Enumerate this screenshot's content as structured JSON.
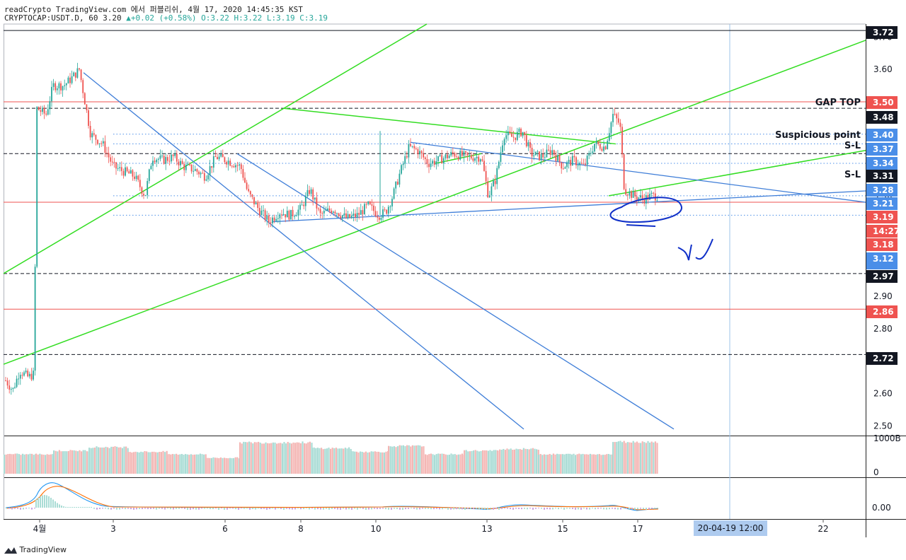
{
  "header": {
    "line1": "readCrypto TradingView.com 에서 퍼블리쉬, 4월 17, 2020 14:45:35 KST",
    "symbol": "CRYPTOCAP:USDT.D, 60",
    "last": "3.20",
    "change": "+0.02 (+0.58%)",
    "ohlc": "O:3.22 H:3.22 L:3.19 C:3.19"
  },
  "branding": "TradingView",
  "colors": {
    "green_line": "#33dd22",
    "blue_line": "#3f7ed8",
    "red_line": "#e53935",
    "up_candle": "#26a69a",
    "down_candle": "#ef5350"
  },
  "chart_data": {
    "type": "candlestick",
    "ylim": [
      2.47,
      3.74
    ],
    "y_ticks": [
      "2.50",
      "2.60",
      "2.70",
      "2.80",
      "2.90",
      "3.00",
      "3.10",
      "3.20",
      "3.30",
      "3.40",
      "3.50",
      "3.60",
      "3.70"
    ],
    "x_ticks": [
      "4월",
      "3",
      "6",
      "8",
      "10",
      "13",
      "15",
      "17",
      "20",
      "22"
    ],
    "crosshair_time_label": "20-04-19   12:00",
    "price_badges": [
      {
        "text": "3.72",
        "bg": "#131722",
        "fg": "#ffffff"
      },
      {
        "text": "3.50",
        "bg": "#ef5350",
        "fg": "#ffffff"
      },
      {
        "text": "3.48",
        "bg": "#131722",
        "fg": "#ffffff"
      },
      {
        "text": "3.40",
        "bg": "#4a8ee8",
        "fg": "#ffffff"
      },
      {
        "text": "3.37",
        "bg": "#4a8ee8",
        "fg": "#ffffff"
      },
      {
        "text": "3.34",
        "bg": "#4a8ee8",
        "fg": "#ffffff"
      },
      {
        "text": "3.31",
        "bg": "#131722",
        "fg": "#ffffff"
      },
      {
        "text": "3.28",
        "bg": "#4a8ee8",
        "fg": "#ffffff"
      },
      {
        "text": "3.21",
        "bg": "#4a8ee8",
        "fg": "#ffffff"
      },
      {
        "text": "3.19",
        "bg": "#ef5350",
        "fg": "#ffffff"
      },
      {
        "text": "14:27",
        "bg": "#ef5350",
        "fg": "#ffffff"
      },
      {
        "text": "3.18",
        "bg": "#ef5350",
        "fg": "#ffffff"
      },
      {
        "text": "3.12",
        "bg": "#4a8ee8",
        "fg": "#ffffff"
      },
      {
        "text": "2.97",
        "bg": "#131722",
        "fg": "#ffffff"
      },
      {
        "text": "2.86",
        "bg": "#ef5350",
        "fg": "#ffffff"
      },
      {
        "text": "2.72",
        "bg": "#131722",
        "fg": "#ffffff"
      }
    ],
    "annotations": [
      {
        "text": "GAP TOP",
        "price": 3.5
      },
      {
        "text": "Suspicious point",
        "price": 3.4
      },
      {
        "text": "S-L",
        "price": 3.37
      },
      {
        "text": "S-L",
        "price": 3.31
      }
    ],
    "horizontal_lines": [
      {
        "price": 3.72,
        "style": "solid",
        "color": "#131722"
      },
      {
        "price": 3.5,
        "style": "solid",
        "color": "#ef5350"
      },
      {
        "price": 3.48,
        "style": "dashed",
        "color": "#131722"
      },
      {
        "price": 3.4,
        "style": "dotted",
        "color": "#4a8ee8"
      },
      {
        "price": 3.37,
        "style": "dotted",
        "color": "#4a8ee8"
      },
      {
        "price": 3.34,
        "style": "dashed",
        "color": "#131722"
      },
      {
        "price": 3.31,
        "style": "dotted",
        "color": "#4a8ee8"
      },
      {
        "price": 3.21,
        "style": "dotted",
        "color": "#4a8ee8"
      },
      {
        "price": 3.19,
        "style": "solid",
        "color": "#ef5350"
      },
      {
        "price": 3.15,
        "style": "dotted",
        "color": "#4a8ee8"
      },
      {
        "price": 2.97,
        "style": "dashed",
        "color": "#131722"
      },
      {
        "price": 2.86,
        "style": "solid",
        "color": "#ef5350"
      },
      {
        "price": 2.72,
        "style": "dashed",
        "color": "#131722"
      }
    ],
    "volume_pane": {
      "ticks": [
        "1000B",
        "0"
      ]
    },
    "macd_pane": {
      "ticks": [
        "0.00"
      ]
    }
  }
}
